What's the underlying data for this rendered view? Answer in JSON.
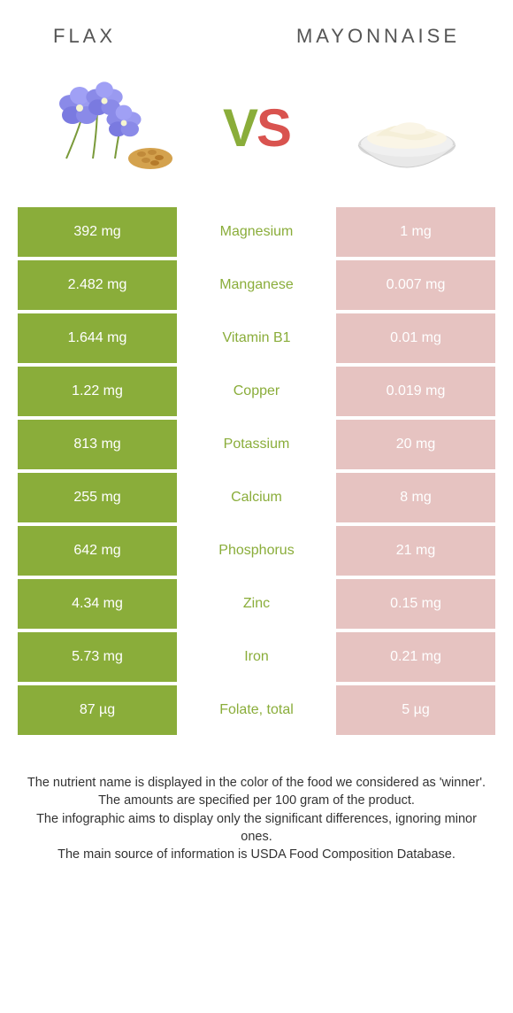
{
  "header": {
    "left_title": "Flax",
    "right_title": "Mayonnaise"
  },
  "vs": {
    "v": "V",
    "s": "S"
  },
  "colors": {
    "winner_left_bg": "#8aad3a",
    "loser_right_bg": "#e6c3c1",
    "nutrient_text": "#8aad3a",
    "value_text": "#ffffff"
  },
  "rows": [
    {
      "left": "392 mg",
      "nutrient": "Magnesium",
      "right": "1 mg"
    },
    {
      "left": "2.482 mg",
      "nutrient": "Manganese",
      "right": "0.007 mg"
    },
    {
      "left": "1.644 mg",
      "nutrient": "Vitamin B1",
      "right": "0.01 mg"
    },
    {
      "left": "1.22 mg",
      "nutrient": "Copper",
      "right": "0.019 mg"
    },
    {
      "left": "813 mg",
      "nutrient": "Potassium",
      "right": "20 mg"
    },
    {
      "left": "255 mg",
      "nutrient": "Calcium",
      "right": "8 mg"
    },
    {
      "left": "642 mg",
      "nutrient": "Phosphorus",
      "right": "21 mg"
    },
    {
      "left": "4.34 mg",
      "nutrient": "Zinc",
      "right": "0.15 mg"
    },
    {
      "left": "5.73 mg",
      "nutrient": "Iron",
      "right": "0.21 mg"
    },
    {
      "left": "87 µg",
      "nutrient": "Folate, total",
      "right": "5 µg"
    }
  ],
  "footer": {
    "line1": "The nutrient name is displayed in the color of the food we considered as 'winner'.",
    "line2": "The amounts are specified per 100 gram of the product.",
    "line3": "The infographic aims to display only the significant differences, ignoring minor ones.",
    "line4": "The main source of information is USDA Food Composition Database."
  }
}
